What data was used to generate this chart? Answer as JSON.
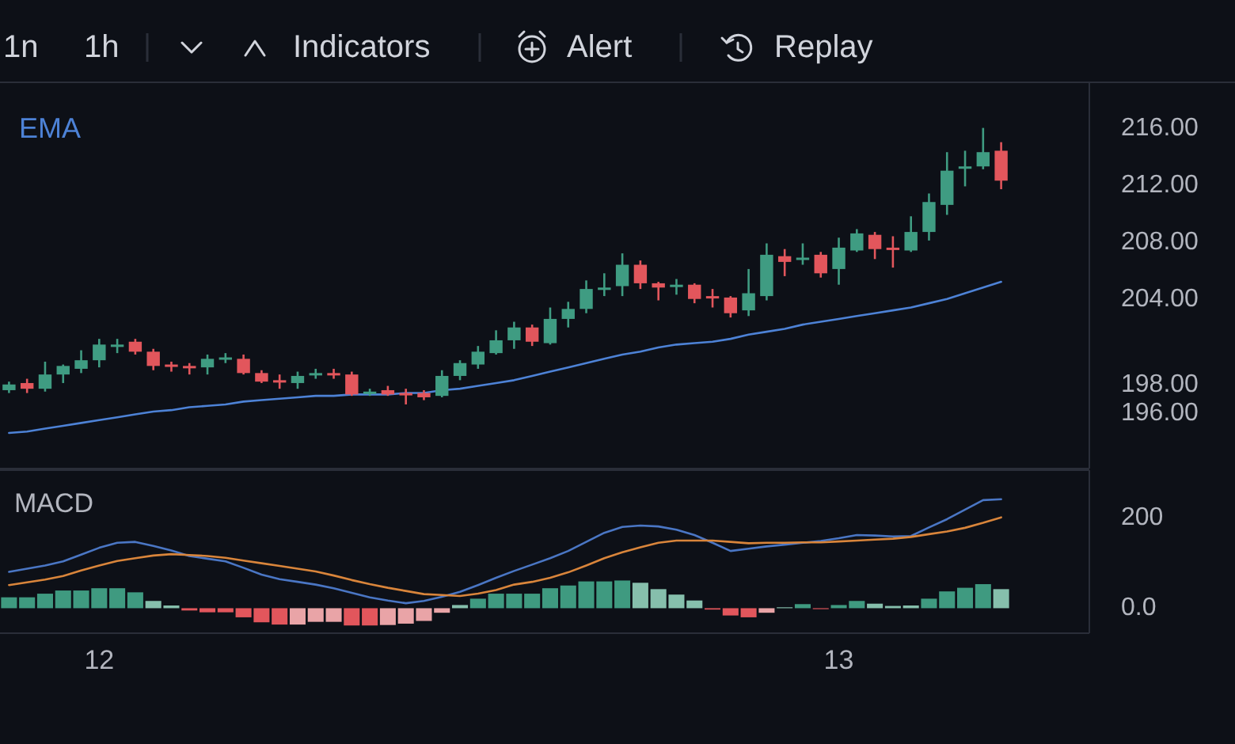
{
  "chart_data": [
    {
      "type": "other",
      "annotations": [
        "1n",
        "1h",
        "Indicators",
        "Alert",
        "Replay"
      ]
    },
    {
      "type": "candlestick",
      "categories": [
        null,
        null,
        null,
        null,
        null,
        null,
        null,
        null,
        null,
        null,
        null,
        null,
        null,
        null,
        null,
        null,
        null,
        null,
        null,
        null,
        null,
        null,
        null,
        null,
        null,
        null,
        null,
        null,
        null,
        null,
        null,
        null,
        null,
        null,
        null,
        null,
        null,
        null,
        null,
        null,
        null,
        null,
        null,
        null,
        null,
        null,
        null,
        null,
        null,
        null,
        null,
        null,
        null,
        null,
        null,
        null
      ],
      "ohlc": [
        [
          197.6,
          198.2,
          197.4,
          198.0
        ],
        [
          198.1,
          198.4,
          197.4,
          197.7
        ],
        [
          197.7,
          199.6,
          197.5,
          198.7
        ],
        [
          198.7,
          199.4,
          198.1,
          199.3
        ],
        [
          199.1,
          200.4,
          198.8,
          199.7
        ],
        [
          199.7,
          201.2,
          199.2,
          200.8
        ],
        [
          200.7,
          201.2,
          200.2,
          200.8
        ],
        [
          201.0,
          201.2,
          200.1,
          200.3
        ],
        [
          200.3,
          200.5,
          199.0,
          199.3
        ],
        [
          199.4,
          199.6,
          198.9,
          199.3
        ],
        [
          199.3,
          199.5,
          198.7,
          199.2
        ],
        [
          199.2,
          200.1,
          198.7,
          199.8
        ],
        [
          199.8,
          200.2,
          199.5,
          199.9
        ],
        [
          199.8,
          200.1,
          198.7,
          198.8
        ],
        [
          198.8,
          199.0,
          198.1,
          198.2
        ],
        [
          198.3,
          198.7,
          197.7,
          198.2
        ],
        [
          198.1,
          198.9,
          197.7,
          198.6
        ],
        [
          198.7,
          199.1,
          198.4,
          198.8
        ],
        [
          198.8,
          199.1,
          198.4,
          198.7
        ],
        [
          198.7,
          198.9,
          197.2,
          197.3
        ],
        [
          197.4,
          197.7,
          197.2,
          197.5
        ],
        [
          197.6,
          197.9,
          197.2,
          197.3
        ],
        [
          197.4,
          197.7,
          196.6,
          197.3
        ],
        [
          197.4,
          197.6,
          196.9,
          197.1
        ],
        [
          197.2,
          199.0,
          197.1,
          198.6
        ],
        [
          198.6,
          199.7,
          198.3,
          199.5
        ],
        [
          199.4,
          200.7,
          199.1,
          200.3
        ],
        [
          200.2,
          201.8,
          200.1,
          201.1
        ],
        [
          201.1,
          202.4,
          200.5,
          202.0
        ],
        [
          202.0,
          202.2,
          200.7,
          201.0
        ],
        [
          200.9,
          203.4,
          200.8,
          202.6
        ],
        [
          202.6,
          203.8,
          202.0,
          203.3
        ],
        [
          203.3,
          205.3,
          203.0,
          204.7
        ],
        [
          204.7,
          205.8,
          204.2,
          204.8
        ],
        [
          204.9,
          207.2,
          204.2,
          206.4
        ],
        [
          206.4,
          206.7,
          204.7,
          205.1
        ],
        [
          205.1,
          205.2,
          203.9,
          204.8
        ],
        [
          204.9,
          205.4,
          204.3,
          205.0
        ],
        [
          205.0,
          205.1,
          203.7,
          204.0
        ],
        [
          204.2,
          204.7,
          203.4,
          204.1
        ],
        [
          204.1,
          204.2,
          202.7,
          203.0
        ],
        [
          203.2,
          206.1,
          202.8,
          204.4
        ],
        [
          204.2,
          207.9,
          203.9,
          207.1
        ],
        [
          207.0,
          207.5,
          205.6,
          206.6
        ],
        [
          206.8,
          207.9,
          206.4,
          206.9
        ],
        [
          207.1,
          207.3,
          205.5,
          205.8
        ],
        [
          206.1,
          208.3,
          205.0,
          207.6
        ],
        [
          207.4,
          208.9,
          207.3,
          208.6
        ],
        [
          208.5,
          208.7,
          206.8,
          207.5
        ],
        [
          207.6,
          208.4,
          206.2,
          207.5
        ],
        [
          207.4,
          209.8,
          207.3,
          208.7
        ],
        [
          208.7,
          211.4,
          208.1,
          210.8
        ],
        [
          210.6,
          214.3,
          209.9,
          213.0
        ],
        [
          213.2,
          214.4,
          211.9,
          213.3
        ],
        [
          213.3,
          216.0,
          213.1,
          214.3
        ],
        [
          214.4,
          215.0,
          211.7,
          212.3
        ]
      ],
      "series": [
        {
          "name": "EMA",
          "type": "line",
          "color": "#4d82d6",
          "values": [
            194.6,
            194.7,
            194.9,
            195.1,
            195.3,
            195.5,
            195.7,
            195.9,
            196.1,
            196.2,
            196.4,
            196.5,
            196.6,
            196.8,
            196.9,
            197.0,
            197.1,
            197.2,
            197.2,
            197.3,
            197.3,
            197.3,
            197.4,
            197.4,
            197.6,
            197.7,
            197.9,
            198.1,
            198.3,
            198.6,
            198.9,
            199.2,
            199.5,
            199.8,
            200.1,
            200.3,
            200.6,
            200.8,
            200.9,
            201.0,
            201.2,
            201.5,
            201.7,
            201.9,
            202.2,
            202.4,
            202.6,
            202.8,
            203.0,
            203.2,
            203.4,
            203.7,
            204.0,
            204.4,
            204.8,
            205.2
          ]
        }
      ],
      "ylim": [
        192.1,
        219.2
      ],
      "yticks": [
        {
          "value": 196,
          "label": "196.00"
        },
        {
          "value": 198,
          "label": "198.00"
        },
        {
          "value": 204,
          "label": "204.00"
        },
        {
          "value": 208,
          "label": "208.00"
        },
        {
          "value": 212,
          "label": "212.00"
        },
        {
          "value": 216,
          "label": "216.00"
        }
      ],
      "legend": "top left",
      "tick_labels": "y"
    },
    {
      "type": "bar",
      "title": "MACD",
      "categories": [
        null,
        null,
        null,
        null,
        null,
        "12",
        null,
        null,
        null,
        null,
        null,
        null,
        null,
        null,
        null,
        null,
        null,
        null,
        null,
        null,
        null,
        null,
        null,
        null,
        null,
        null,
        null,
        null,
        null,
        null,
        null,
        null,
        null,
        null,
        null,
        null,
        null,
        null,
        null,
        null,
        null,
        null,
        null,
        null,
        null,
        null,
        "13",
        null,
        null,
        null,
        null,
        null,
        null,
        null,
        null,
        null
      ],
      "series": [
        {
          "type": "bar",
          "values": [
            24,
            24,
            32,
            39,
            39,
            44,
            44,
            35,
            16,
            6,
            -5,
            -9,
            -9,
            -20,
            -31,
            -36,
            -36,
            -30,
            -30,
            -38,
            -38,
            -37,
            -34,
            -28,
            -10,
            7,
            21,
            32,
            32,
            32,
            44,
            50,
            59,
            59,
            61,
            56,
            42,
            30,
            17,
            -3,
            -16,
            -20,
            -10,
            2,
            9,
            -2,
            7,
            16,
            10,
            5,
            6,
            21,
            37,
            45,
            53,
            42
          ],
          "colors": [
            "#3f9a80",
            "#3f9a80",
            "#3f9a80",
            "#3f9a80",
            "#3f9a80",
            "#3f9a80",
            "#3f9a80",
            "#3f9a80",
            "#86bfac",
            "#86bfac",
            "#e2565c",
            "#e2565c",
            "#e2565c",
            "#e2565c",
            "#e2565c",
            "#e2565c",
            "#e9a4a7",
            "#e9a4a7",
            "#e9a4a7",
            "#e2565c",
            "#e2565c",
            "#e9a4a7",
            "#e9a4a7",
            "#e9a4a7",
            "#e9a4a7",
            "#86bfac",
            "#3f9a80",
            "#3f9a80",
            "#3f9a80",
            "#3f9a80",
            "#3f9a80",
            "#3f9a80",
            "#3f9a80",
            "#3f9a80",
            "#3f9a80",
            "#86bfac",
            "#86bfac",
            "#86bfac",
            "#86bfac",
            "#e2565c",
            "#e2565c",
            "#e2565c",
            "#e9a4a7",
            "#86bfac",
            "#3f9a80",
            "#e2565c",
            "#3f9a80",
            "#3f9a80",
            "#86bfac",
            "#86bfac",
            "#86bfac",
            "#3f9a80",
            "#3f9a80",
            "#3f9a80",
            "#3f9a80",
            "#86bfac"
          ]
        },
        {
          "type": "line",
          "color": "#4a76c4",
          "values": [
            80,
            87,
            94,
            103,
            118,
            133,
            144,
            146,
            137,
            127,
            115,
            109,
            103,
            89,
            74,
            64,
            58,
            52,
            44,
            34,
            24,
            17,
            11,
            16,
            25,
            36,
            51,
            67,
            82,
            96,
            110,
            126,
            146,
            166,
            179,
            182,
            180,
            173,
            161,
            144,
            126,
            131,
            136,
            140,
            144,
            148,
            154,
            161,
            160,
            158,
            159,
            178,
            196,
            217,
            238,
            240
          ]
        },
        {
          "type": "line",
          "color": "#d9853b",
          "values": [
            51,
            57,
            63,
            71,
            83,
            94,
            104,
            110,
            116,
            119,
            117,
            115,
            111,
            105,
            99,
            93,
            87,
            81,
            72,
            62,
            53,
            45,
            38,
            31,
            29,
            27,
            32,
            40,
            52,
            58,
            67,
            79,
            94,
            110,
            123,
            134,
            144,
            149,
            149,
            149,
            146,
            143,
            144,
            144,
            145,
            145,
            147,
            149,
            151,
            153,
            157,
            163,
            169,
            177,
            188,
            200
          ]
        }
      ],
      "ylim": [
        -55,
        304
      ],
      "yticks": [
        {
          "value": 0,
          "label": "0.0"
        },
        200
      ]
    }
  ]
}
